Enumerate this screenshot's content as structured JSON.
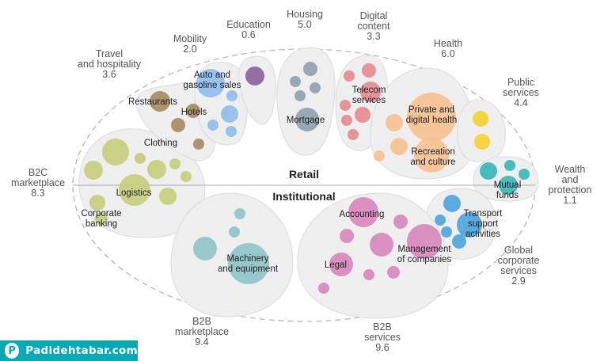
{
  "divider": {
    "retail": "Retail",
    "institutional": "Institutional"
  },
  "clusters": [
    {
      "id": "b2c",
      "name": [
        "B2C",
        "marketplace"
      ],
      "value": "8.3",
      "color": "#c5cc7a"
    },
    {
      "id": "travel",
      "name": [
        "Travel",
        "and hospitality"
      ],
      "value": "3.6",
      "color": "#a58a5f"
    },
    {
      "id": "mobility",
      "name": [
        "Mobility"
      ],
      "value": "2.0",
      "color": "#8ebde8"
    },
    {
      "id": "education",
      "name": [
        "Education"
      ],
      "value": "0.6",
      "color": "#8c5e9e"
    },
    {
      "id": "housing",
      "name": [
        "Housing"
      ],
      "value": "5.0",
      "color": "#8fa0b0"
    },
    {
      "id": "digital",
      "name": [
        "Digital",
        "content"
      ],
      "value": "3.3",
      "color": "#e68890"
    },
    {
      "id": "health",
      "name": [
        "Health"
      ],
      "value": "6.0",
      "color": "#f6c08f"
    },
    {
      "id": "public",
      "name": [
        "Public",
        "services"
      ],
      "value": "4.4",
      "color": "#f4d030"
    },
    {
      "id": "wealth",
      "name": [
        "Wealth",
        "and",
        "protection"
      ],
      "value": "1.1",
      "color": "#35b7b8"
    },
    {
      "id": "global",
      "name": [
        "Global",
        "corporate",
        "services"
      ],
      "value": "2.9",
      "color": "#4aa3dc"
    },
    {
      "id": "b2bservices",
      "name": [
        "B2B",
        "services"
      ],
      "value": "9.6",
      "color": "#d885bd"
    },
    {
      "id": "b2bmarket",
      "name": [
        "B2B",
        "marketplace"
      ],
      "value": "9.4",
      "color": "#8cc3c8"
    }
  ],
  "inner_labels": {
    "clothing": [
      "Clothing"
    ],
    "logistics": [
      "Logistics"
    ],
    "corporate_banking": [
      "Corporate",
      "banking"
    ],
    "restaurants": [
      "Restaurants"
    ],
    "hotels": [
      "Hotels"
    ],
    "auto": [
      "Auto and",
      "gasoline sales"
    ],
    "mortgage": [
      "Mortgage"
    ],
    "telecom": [
      "Telecom",
      "services"
    ],
    "private_health": [
      "Private and",
      "digital health"
    ],
    "recreation": [
      "Recreation",
      "and culture"
    ],
    "mutual_funds": [
      "Mutual",
      "funds"
    ],
    "transport": [
      "Transport",
      "support",
      "activities"
    ],
    "accounting": [
      "Accounting"
    ],
    "management": [
      "Management",
      "of companies"
    ],
    "legal": [
      "Legal"
    ],
    "machinery": [
      "Machinery",
      "and equipment"
    ]
  },
  "brand": {
    "name": "Padidehtabar.com",
    "icon": "p-logo-icon"
  }
}
